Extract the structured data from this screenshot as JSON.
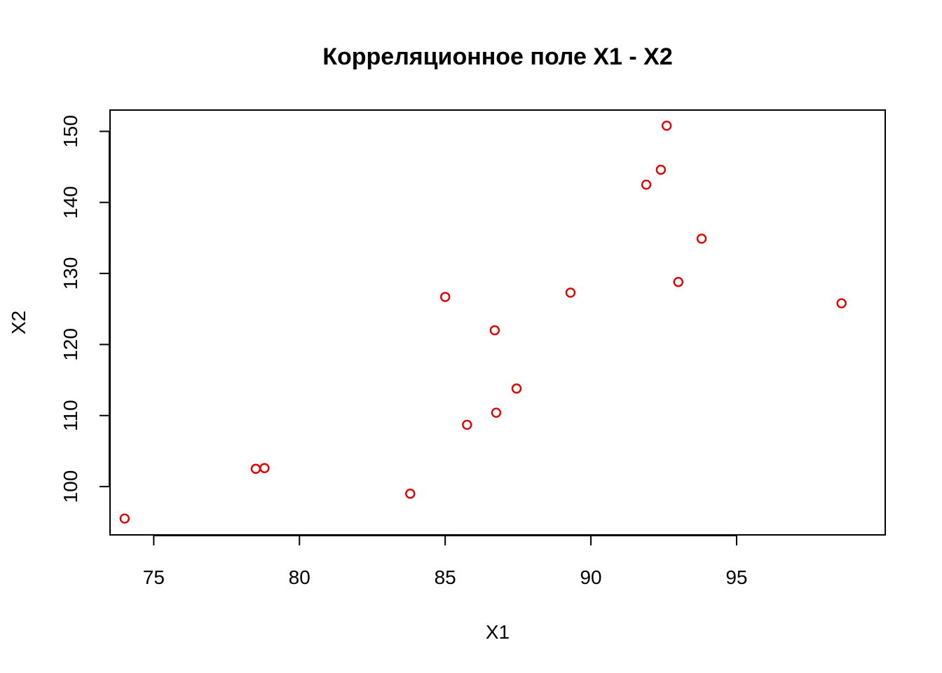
{
  "chart_data": {
    "type": "scatter",
    "title": "Корреляционное поле X1 - X2",
    "xlabel": "X1",
    "ylabel": "X2",
    "xlim": [
      73.5,
      100.1
    ],
    "ylim": [
      93.2,
      153.0
    ],
    "x_ticks": [
      75,
      80,
      85,
      90,
      95
    ],
    "y_ticks": [
      100,
      110,
      120,
      130,
      140,
      150
    ],
    "grid": false,
    "marker": "open-circle",
    "point_color": "#e00000",
    "series": [
      {
        "points": [
          {
            "x": 74.0,
            "y": 95.5
          },
          {
            "x": 78.5,
            "y": 102.5
          },
          {
            "x": 78.8,
            "y": 102.6
          },
          {
            "x": 83.8,
            "y": 99.0
          },
          {
            "x": 85.0,
            "y": 126.7
          },
          {
            "x": 85.75,
            "y": 108.7
          },
          {
            "x": 86.7,
            "y": 122.0
          },
          {
            "x": 86.75,
            "y": 110.4
          },
          {
            "x": 87.45,
            "y": 113.8
          },
          {
            "x": 89.3,
            "y": 127.3
          },
          {
            "x": 91.9,
            "y": 142.5
          },
          {
            "x": 92.4,
            "y": 144.6
          },
          {
            "x": 92.6,
            "y": 150.8
          },
          {
            "x": 93.0,
            "y": 128.8
          },
          {
            "x": 93.8,
            "y": 134.9
          },
          {
            "x": 98.6,
            "y": 125.8
          }
        ]
      }
    ]
  }
}
